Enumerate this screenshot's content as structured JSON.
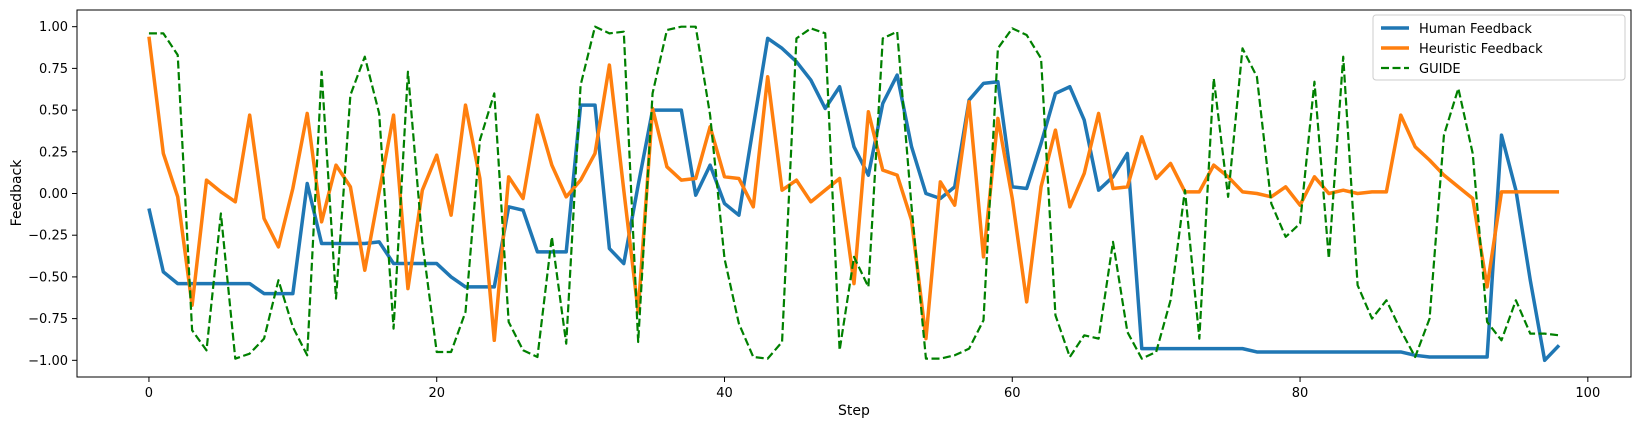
{
  "chart_data": {
    "type": "line",
    "title": "",
    "xlabel": "Step",
    "ylabel": "Feedback",
    "xlim": [
      -5,
      103
    ],
    "ylim": [
      -1.1,
      1.1
    ],
    "x_ticks": [
      0,
      20,
      40,
      60,
      80,
      100
    ],
    "x_tick_labels": [
      "0",
      "20",
      "40",
      "60",
      "80",
      "100"
    ],
    "y_ticks": [
      1.0,
      0.75,
      0.5,
      0.25,
      0.0,
      -0.25,
      -0.5,
      -0.75,
      -1.0
    ],
    "y_tick_labels": [
      "1.00",
      "0.75",
      "0.50",
      "0.25",
      "0.00",
      "−0.25",
      "−0.50",
      "−0.75",
      "−1.00"
    ],
    "grid": false,
    "legend_position": "top-right",
    "series": [
      {
        "name": "Human Feedback",
        "color": "#1f77b4",
        "style": "solid",
        "values": [
          -0.09,
          -0.47,
          -0.54,
          -0.54,
          -0.54,
          -0.54,
          -0.54,
          -0.54,
          -0.6,
          -0.6,
          -0.6,
          0.06,
          -0.3,
          -0.3,
          -0.3,
          -0.3,
          -0.29,
          -0.42,
          -0.42,
          -0.42,
          -0.42,
          -0.5,
          -0.56,
          -0.56,
          -0.56,
          -0.08,
          -0.1,
          -0.35,
          -0.35,
          -0.35,
          0.53,
          0.53,
          -0.33,
          -0.42,
          0.05,
          0.5,
          0.5,
          0.5,
          -0.01,
          0.17,
          -0.06,
          -0.13,
          0.4,
          0.93,
          0.87,
          0.79,
          0.68,
          0.51,
          0.64,
          0.28,
          0.11,
          0.54,
          0.71,
          0.28,
          0.0,
          -0.03,
          0.04,
          0.56,
          0.66,
          0.67,
          0.04,
          0.03,
          0.3,
          0.6,
          0.64,
          0.44,
          0.02,
          0.1,
          0.24,
          -0.93,
          -0.93,
          -0.93,
          -0.93,
          -0.93,
          -0.93,
          -0.93,
          -0.93,
          -0.95,
          -0.95,
          -0.95,
          -0.95,
          -0.95,
          -0.95,
          -0.95,
          -0.95,
          -0.95,
          -0.95,
          -0.95,
          -0.97,
          -0.98,
          -0.98,
          -0.98,
          -0.98,
          -0.98,
          0.35,
          0.02,
          -0.52,
          -1.0,
          -0.91
        ]
      },
      {
        "name": "Heuristic Feedback",
        "color": "#ff7f0e",
        "style": "solid",
        "values": [
          0.94,
          0.24,
          -0.02,
          -0.67,
          0.08,
          0.01,
          -0.05,
          0.47,
          -0.15,
          -0.32,
          0.03,
          0.48,
          -0.17,
          0.17,
          0.04,
          -0.46,
          0.01,
          0.47,
          -0.57,
          0.02,
          0.23,
          -0.13,
          0.53,
          0.09,
          -0.88,
          0.1,
          -0.03,
          0.47,
          0.17,
          -0.02,
          0.08,
          0.24,
          0.77,
          0.02,
          -0.71,
          0.51,
          0.16,
          0.08,
          0.09,
          0.4,
          0.1,
          0.09,
          -0.08,
          0.7,
          0.02,
          0.08,
          -0.05,
          0.02,
          0.09,
          -0.54,
          0.49,
          0.14,
          0.11,
          -0.16,
          -0.87,
          0.07,
          -0.07,
          0.55,
          -0.38,
          0.45,
          -0.03,
          -0.65,
          0.04,
          0.38,
          -0.08,
          0.12,
          0.48,
          0.03,
          0.04,
          0.34,
          0.09,
          0.18,
          0.01,
          0.01,
          0.17,
          0.1,
          0.01,
          0.0,
          -0.02,
          0.04,
          -0.07,
          0.1,
          0.0,
          0.02,
          0.0,
          0.01,
          0.01,
          0.47,
          0.28,
          0.2,
          0.11,
          0.04,
          -0.03,
          -0.56,
          0.01,
          0.01,
          0.01,
          0.01,
          0.01
        ]
      },
      {
        "name": "GUIDE",
        "color": "#008000",
        "style": "dashed",
        "values": [
          0.96,
          0.96,
          0.83,
          -0.82,
          -0.94,
          -0.12,
          -0.99,
          -0.96,
          -0.87,
          -0.52,
          -0.8,
          -0.97,
          0.73,
          -0.63,
          0.59,
          0.82,
          0.48,
          -0.81,
          0.73,
          -0.29,
          -0.95,
          -0.95,
          -0.71,
          0.32,
          0.6,
          -0.77,
          -0.94,
          -0.98,
          -0.26,
          -0.9,
          0.65,
          1.0,
          0.96,
          0.97,
          -0.89,
          0.6,
          0.98,
          1.0,
          1.0,
          0.47,
          -0.39,
          -0.78,
          -0.98,
          -0.99,
          -0.89,
          0.93,
          0.99,
          0.96,
          -0.94,
          -0.38,
          -0.56,
          0.93,
          0.97,
          -0.08,
          -0.99,
          -0.99,
          -0.97,
          -0.93,
          -0.76,
          0.87,
          0.99,
          0.95,
          0.81,
          -0.73,
          -0.98,
          -0.85,
          -0.87,
          -0.29,
          -0.83,
          -0.99,
          -0.95,
          -0.64,
          0.02,
          -0.87,
          0.69,
          -0.02,
          0.87,
          0.7,
          -0.06,
          -0.26,
          -0.18,
          0.67,
          -0.39,
          0.82,
          -0.55,
          -0.75,
          -0.64,
          -0.82,
          -0.98,
          -0.75,
          0.35,
          0.63,
          0.24,
          -0.77,
          -0.88,
          -0.64,
          -0.84,
          -0.84,
          -0.85
        ]
      }
    ]
  }
}
